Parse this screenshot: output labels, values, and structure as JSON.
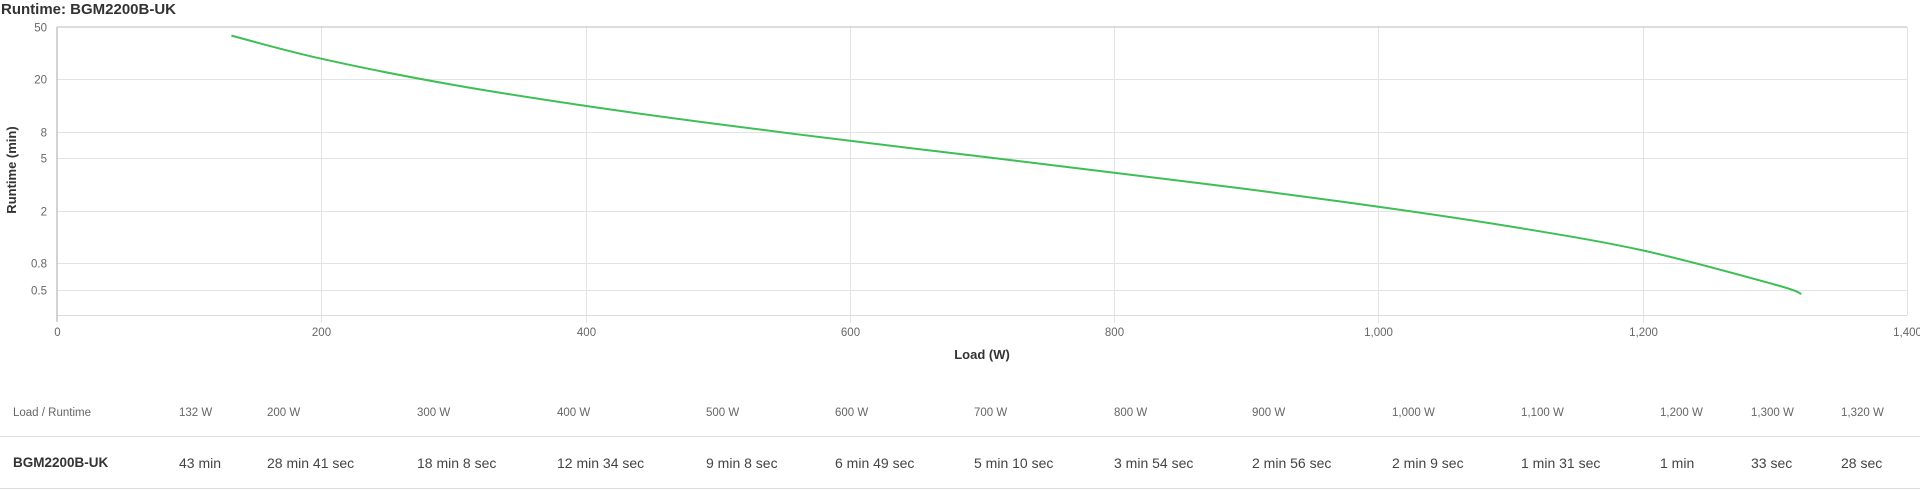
{
  "title": "Runtime: BGM2200B-UK",
  "chart_data": {
    "type": "line",
    "title": "Runtime: BGM2200B-UK",
    "xlabel": "Load (W)",
    "ylabel": "Runtime (min)",
    "xlim": [
      0,
      1400
    ],
    "ylim": [
      0.32,
      50
    ],
    "yscale": "log",
    "grid": true,
    "legend": null,
    "x_ticks": [
      "0",
      "200",
      "400",
      "600",
      "800",
      "1,000",
      "1,200",
      "1,400"
    ],
    "y_ticks": [
      "50",
      "20",
      "8",
      "5",
      "2",
      "0.8",
      "0.5"
    ],
    "series": [
      {
        "name": "BGM2200B-UK",
        "color": "#3dbf55",
        "x": [
          132,
          200,
          300,
          400,
          500,
          600,
          700,
          800,
          900,
          1000,
          1100,
          1200,
          1300,
          1320
        ],
        "values": [
          43,
          28.68,
          18.13,
          12.57,
          9.13,
          6.82,
          5.17,
          3.9,
          2.93,
          2.15,
          1.52,
          1.0,
          0.55,
          0.467
        ]
      }
    ]
  },
  "table": {
    "header_label": "Load / Runtime",
    "loads": [
      "132 W",
      "200 W",
      "300 W",
      "400 W",
      "500 W",
      "600 W",
      "700 W",
      "800 W",
      "900 W",
      "1,000 W",
      "1,100 W",
      "1,200 W",
      "1,300 W",
      "1,320 W"
    ],
    "rows": [
      {
        "model": "BGM2200B-UK",
        "runtimes": [
          "43 min",
          "28 min 41 sec",
          "18 min 8 sec",
          "12 min 34 sec",
          "9 min 8 sec",
          "6 min 49 sec",
          "5 min 10 sec",
          "3 min 54 sec",
          "2 min 56 sec",
          "2 min 9 sec",
          "1 min 31 sec",
          "1 min",
          "33 sec",
          "28 sec"
        ]
      }
    ]
  }
}
